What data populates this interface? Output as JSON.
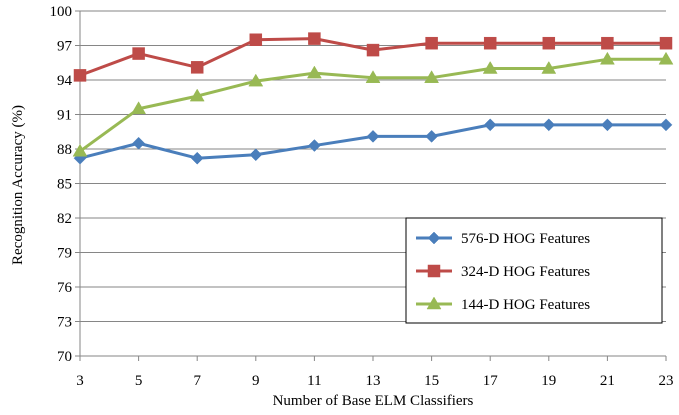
{
  "chart_data": {
    "type": "line",
    "title": "",
    "xlabel": "Number of Base ELM Classifiers",
    "ylabel": "Recognition Accuracy (%)",
    "x": [
      3,
      5,
      7,
      9,
      11,
      13,
      15,
      17,
      19,
      21,
      23
    ],
    "x_tick_labels": [
      "3",
      "5",
      "7",
      "9",
      "11",
      "13",
      "15",
      "17",
      "19",
      "21",
      "23"
    ],
    "ylim": [
      70,
      100
    ],
    "y_ticks": [
      70,
      73,
      76,
      79,
      82,
      85,
      88,
      91,
      94,
      97,
      100
    ],
    "y_tick_labels": [
      "70",
      "73",
      "76",
      "79",
      "82",
      "85",
      "88",
      "91",
      "94",
      "97",
      "100"
    ],
    "grid": "horizontal",
    "legend_position": "bottom-right",
    "series": [
      {
        "name": "576-D HOG Features",
        "color": "#4a7ebb",
        "marker": "diamond",
        "values": [
          87.2,
          88.5,
          87.2,
          87.5,
          88.3,
          89.1,
          89.1,
          90.1,
          90.1,
          90.1,
          90.1
        ]
      },
      {
        "name": "324-D HOG Features",
        "color": "#be4b48",
        "marker": "square",
        "values": [
          94.4,
          96.3,
          95.1,
          97.5,
          97.6,
          96.6,
          97.2,
          97.2,
          97.2,
          97.2,
          97.2
        ]
      },
      {
        "name": "144-D HOG Features",
        "color": "#98b954",
        "marker": "triangle",
        "values": [
          87.8,
          91.5,
          92.6,
          93.9,
          94.6,
          94.2,
          94.2,
          95.0,
          95.0,
          95.8,
          95.8
        ]
      }
    ]
  }
}
